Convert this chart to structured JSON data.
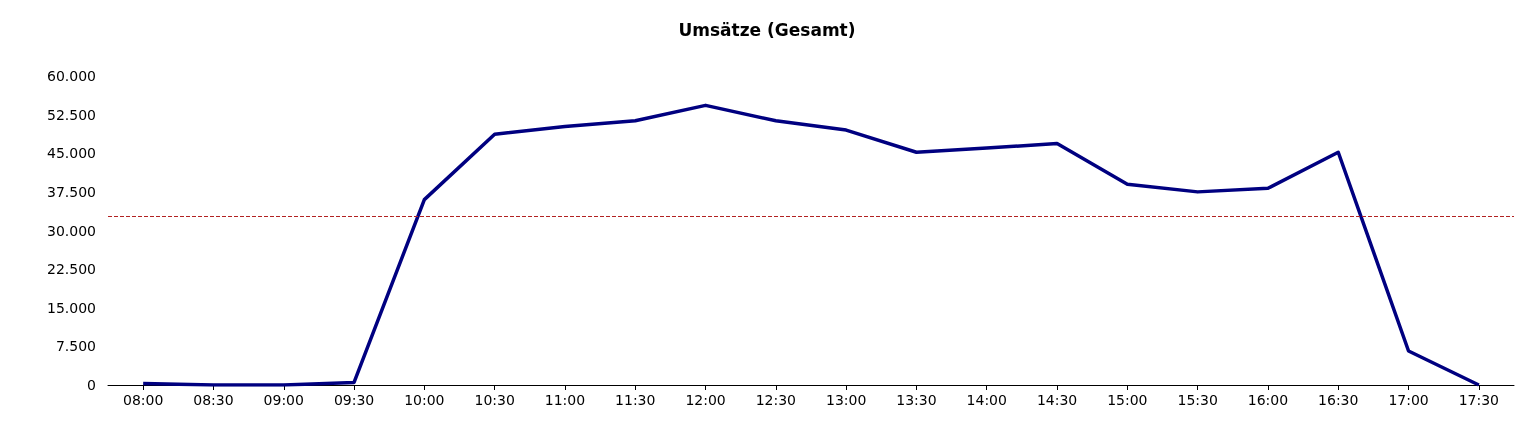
{
  "chart_data": {
    "type": "line",
    "title": "Umsätze (Gesamt)",
    "categories": [
      "08:00",
      "08:30",
      "09:00",
      "09:30",
      "10:00",
      "10:30",
      "11:00",
      "11:30",
      "12:00",
      "12:30",
      "13:00",
      "13:30",
      "14:00",
      "14:30",
      "15:00",
      "15:30",
      "16:00",
      "16:30",
      "17:00",
      "17:30"
    ],
    "series": [
      {
        "color": "#000080",
        "values": [
          300,
          0,
          0,
          500,
          36000,
          48700,
          50200,
          51300,
          54300,
          51300,
          49500,
          45200,
          46000,
          46900,
          39000,
          37500,
          38200,
          45200,
          6600,
          0
        ]
      }
    ],
    "ylim": [
      0,
      60000
    ],
    "yticks": [
      0,
      {
        "value": 7500,
        "label": "7.500"
      },
      {
        "value": 15000,
        "label": "15.000"
      },
      {
        "value": 22500,
        "label": "22.500"
      },
      {
        "value": 30000,
        "label": "30.000"
      },
      {
        "value": 37500,
        "label": "37.500"
      },
      {
        "value": 45000,
        "label": "45.000"
      },
      {
        "value": 52500,
        "label": "52.500"
      },
      {
        "value": 60000,
        "label": "60.000"
      }
    ],
    "ref_lines": [
      {
        "axis": "y",
        "value": 32700,
        "color": "#b22222",
        "line_style": "dashed"
      }
    ],
    "grid": false,
    "marker": "none",
    "line_style": "solid"
  }
}
